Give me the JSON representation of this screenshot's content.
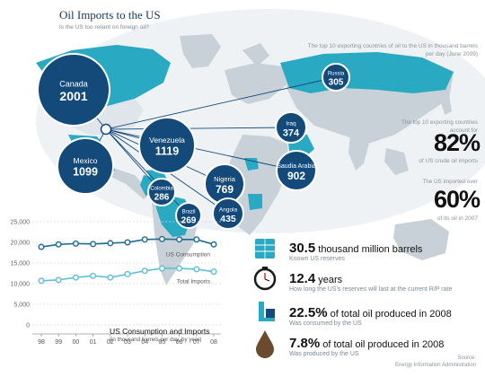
{
  "header": {
    "title": "Oil Imports to the US",
    "subtitle": "Is the US too reliant on foreign oil?"
  },
  "map": {
    "note": "The top 10 exporting countries of oil to the US in thousand barrels per day (June 2009)",
    "country_color": "#2aa9c2",
    "bubble_color": "#134a7a",
    "exporters": [
      {
        "name": "Canada",
        "value": "2001"
      },
      {
        "name": "Mexico",
        "value": "1099"
      },
      {
        "name": "Venezuela",
        "value": "1119"
      },
      {
        "name": "Colombia",
        "value": "286"
      },
      {
        "name": "Brazil",
        "value": "269"
      },
      {
        "name": "Nigeria",
        "value": "769"
      },
      {
        "name": "Angola",
        "value": "435"
      },
      {
        "name": "Saudia Arabia",
        "value": "902"
      },
      {
        "name": "Iraq",
        "value": "374"
      },
      {
        "name": "Russia",
        "value": "305"
      }
    ]
  },
  "stats": {
    "top10_note": "The top 10 exporting countries account for",
    "top10_pct": "82%",
    "top10_sub": "of US crude oil imports",
    "imported_note": "The US imported over",
    "imported_pct": "60%",
    "imported_sub": "of its oil in 2007"
  },
  "facts": [
    {
      "icon": "oil-barrels-icon",
      "big": "30.5",
      "rest": " thousand million barrels",
      "desc": "Known US reserves"
    },
    {
      "icon": "stopwatch-icon",
      "big": "12.4",
      "rest": " years",
      "desc": "How long the US's reserves will last at the current R/P rate"
    },
    {
      "icon": "oil-refinery-icon",
      "big": "22.5%",
      "rest": " of total oil produced in 2008",
      "desc": "Was consumed by the US"
    },
    {
      "icon": "oil-drop-icon",
      "big": "7.8%",
      "rest": " of total oil produced in 2008",
      "desc": "Was produced by the US"
    }
  ],
  "source": {
    "label": "Source:",
    "name": "Energy Information Administration"
  },
  "chart_data": {
    "type": "line",
    "title": "US Consumption and Imports",
    "subtitle": "(in thousand barrels per day, by year)",
    "categories": [
      "98",
      "99",
      "00",
      "01",
      "02",
      "03",
      "04",
      "05",
      "06",
      "07",
      "08"
    ],
    "yticks": [
      "0",
      "5,000",
      "10,000",
      "15,000",
      "20,000",
      "25,000"
    ],
    "ylim": [
      0,
      25000
    ],
    "line_color": "#1f6b94",
    "series": [
      {
        "name": "US Consumption",
        "values": [
          18900,
          19500,
          19700,
          19600,
          19800,
          20000,
          20700,
          20800,
          20700,
          20700,
          19500
        ]
      },
      {
        "name": "Total Imports",
        "values": [
          10700,
          10900,
          11500,
          11900,
          11500,
          12300,
          13100,
          13700,
          13700,
          13500,
          12900
        ]
      }
    ]
  }
}
